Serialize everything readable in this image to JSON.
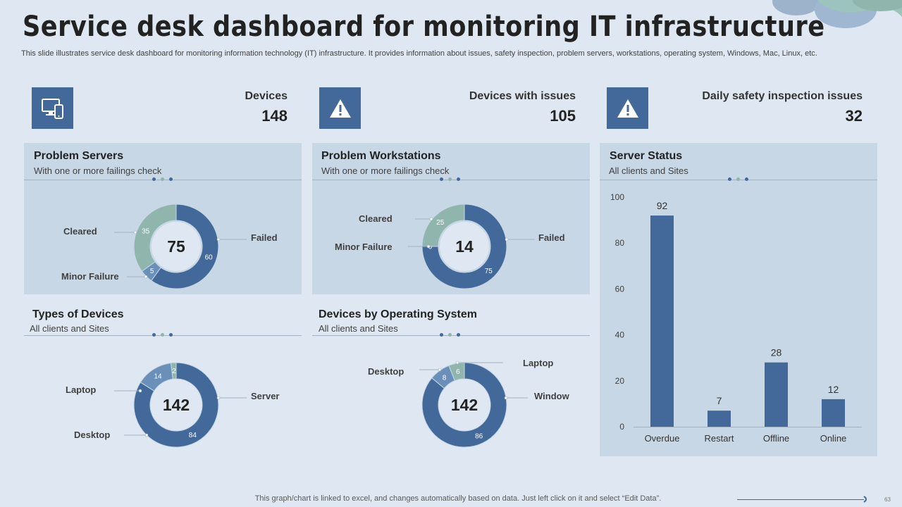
{
  "title": "Service desk dashboard for monitoring IT infrastructure",
  "subtitle": "This slide illustrates service desk dashboard for monitoring information technology (IT) infrastructure. It provides information about issues, safety inspection, problem servers, workstations, operating system, Windows, Mac, Linux, etc.",
  "colors": {
    "dark": "#43699a",
    "light": "#8fb5ad",
    "mid": "#6a8fb8",
    "panel": "#c7d7e6",
    "bg": "#dfe8f2"
  },
  "kpis": [
    {
      "label": "Devices",
      "value": "148",
      "icon": "devices-icon"
    },
    {
      "label": "Devices with issues",
      "value": "105",
      "icon": "warning-icon"
    },
    {
      "label": "Daily safety inspection issues",
      "value": "32",
      "icon": "warning-icon"
    }
  ],
  "problem_servers": {
    "title": "Problem Servers",
    "subtitle": "With one or more failings check",
    "center": "75",
    "segments": [
      {
        "label": "Failed",
        "value": 60
      },
      {
        "label": "Minor Failure",
        "value": 5
      },
      {
        "label": "Cleared",
        "value": 35
      }
    ]
  },
  "problem_workstations": {
    "title": "Problem Workstations",
    "subtitle": "With one or more failings check",
    "center": "14",
    "segments": [
      {
        "label": "Failed",
        "value": 75
      },
      {
        "label": "Minor Failure",
        "value": 0
      },
      {
        "label": "Cleared",
        "value": 25
      }
    ]
  },
  "types_of_devices": {
    "title": "Types of Devices",
    "subtitle": "All clients and Sites",
    "center": "142",
    "segments": [
      {
        "label": "Server",
        "value": 84
      },
      {
        "label": "Desktop",
        "value": 14
      },
      {
        "label": "Laptop",
        "value": 2
      }
    ]
  },
  "devices_by_os": {
    "title": "Devices by Operating System",
    "subtitle": "All clients and Sites",
    "center": "142",
    "segments": [
      {
        "label": "Window",
        "value": 86
      },
      {
        "label": "Desktop",
        "value": 8
      },
      {
        "label": "Laptop",
        "value": 6
      }
    ]
  },
  "server_status": {
    "title": "Server Status",
    "subtitle": "All clients and Sites"
  },
  "chart_data": {
    "type": "bar",
    "title": "Server Status",
    "categories": [
      "Overdue",
      "Restart",
      "Offline",
      "Online"
    ],
    "values": [
      92,
      7,
      28,
      12
    ],
    "ylim": [
      0,
      100
    ],
    "yticks": [
      0,
      20,
      40,
      60,
      80,
      100
    ],
    "xlabel": "",
    "ylabel": ""
  },
  "footer": "This graph/chart is linked to excel,  and changes automatically based on data. Just left click on it and select “Edit Data”.",
  "page_number": "63"
}
